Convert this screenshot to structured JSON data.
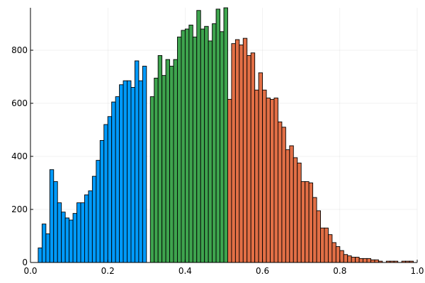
{
  "chart_data": {
    "type": "histogram",
    "title": "",
    "xlabel": "",
    "ylabel": "",
    "xlim": [
      0,
      1
    ],
    "ylim": [
      0,
      960
    ],
    "bin_width": 0.01,
    "x_ticks": [
      "0.0",
      "0.2",
      "0.4",
      "0.6",
      "0.8",
      "1.0"
    ],
    "y_ticks": [
      "0",
      "200",
      "400",
      "600",
      "800"
    ],
    "grid": true,
    "legend": "none",
    "series": [
      {
        "color": "#009AFA",
        "bin_start": 0.02,
        "counts": [
          55,
          145,
          108,
          350,
          305,
          225,
          190,
          168,
          160,
          185,
          225,
          225,
          255,
          270,
          325,
          385,
          460,
          520,
          550,
          605,
          625,
          670,
          685,
          685,
          660,
          760,
          685,
          740
        ]
      },
      {
        "color": "#3EA44E",
        "bin_start": 0.31,
        "counts": [
          625,
          695,
          780,
          705,
          765,
          740,
          765,
          850,
          875,
          880,
          895,
          850,
          950,
          880,
          890,
          835,
          900,
          955,
          870,
          960
        ]
      },
      {
        "color": "#E26F46",
        "bin_start": 0.51,
        "counts": [
          615,
          825,
          840,
          820,
          845,
          780,
          790,
          650,
          715,
          650,
          620,
          615,
          620,
          530,
          510,
          425,
          440,
          395,
          375,
          305,
          305,
          300,
          245,
          195,
          130,
          130,
          105,
          75,
          60,
          45,
          30,
          25,
          20,
          20,
          15,
          15,
          15,
          10,
          10,
          5,
          0,
          5,
          5,
          5,
          0,
          5,
          5,
          5
        ]
      }
    ]
  }
}
